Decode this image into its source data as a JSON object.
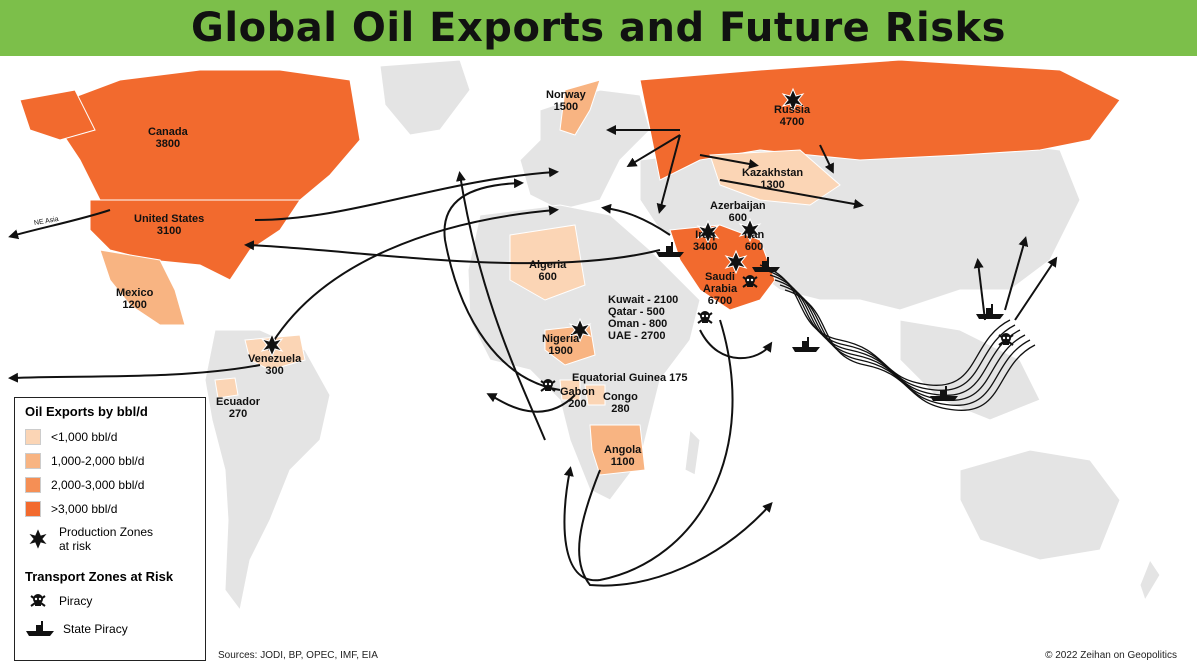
{
  "title": "Global Oil Exports and Future Risks",
  "countries": [
    {
      "name": "Canada",
      "value": "3800"
    },
    {
      "name": "United States",
      "value": "3100"
    },
    {
      "name": "Mexico",
      "value": "1200"
    },
    {
      "name": "Venezuela",
      "value": "300"
    },
    {
      "name": "Ecuador",
      "value": "270"
    },
    {
      "name": "Norway",
      "value": "1500"
    },
    {
      "name": "Russia",
      "value": "4700"
    },
    {
      "name": "Kazakhstan",
      "value": "1300"
    },
    {
      "name": "Azerbaijan",
      "value": "600"
    },
    {
      "name": "Iraq",
      "value": "3400"
    },
    {
      "name": "Iran",
      "value": "600"
    },
    {
      "name": "Saudi Arabia",
      "value": "6700"
    },
    {
      "name": "Algeria",
      "value": "600"
    },
    {
      "name": "Nigeria",
      "value": "1900"
    },
    {
      "name": "Gabon",
      "value": "200"
    },
    {
      "name": "Congo",
      "value": "280"
    },
    {
      "name": "Angola",
      "value": "1100"
    }
  ],
  "gulf_list": [
    "Kuwait - 2100",
    "Qatar - 500",
    "Oman - 800",
    "UAE - 2700"
  ],
  "eq_guinea": "Equatorial Guinea 175",
  "ne_asia": "NE Asia",
  "legend": {
    "title": "Oil Exports by bbl/d",
    "items": [
      {
        "label": "<1,000 bbl/d",
        "color": "#fbd5b5"
      },
      {
        "label": "1,000-2,000 bbl/d",
        "color": "#f8b482"
      },
      {
        "label": "2,000-3,000 bbl/d",
        "color": "#f58f55"
      },
      {
        "label": ">3,000 bbl/d",
        "color": "#f26a2e"
      }
    ],
    "production_label_1": "Production Zones",
    "production_label_2": "at risk",
    "transport_title": "Transport Zones at Risk",
    "piracy": "Piracy",
    "state_piracy": "State Piracy"
  },
  "sources": "Sources: JODI, BP, OPEC, IMF, EIA",
  "copyright": "© 2022 Zeihan on Geopolitics",
  "colors": {
    "land": "#e3e3e3",
    "banner": "#7cbf4a",
    "high": "#f26a2e",
    "mid": "#f58f55",
    "low": "#f8b482",
    "vlow": "#fbd5b5"
  }
}
